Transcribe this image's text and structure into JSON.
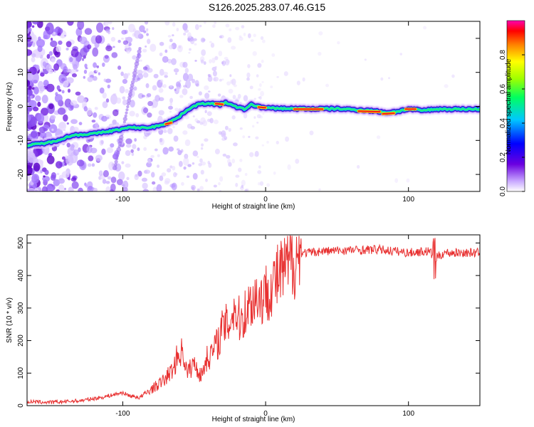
{
  "title": "S126.2025.283.07.46.G15",
  "chart_data": [
    {
      "type": "heatmap",
      "xlabel": "Height of straight line (km)",
      "ylabel": "Frequency (Hz)",
      "xlim": [
        -167,
        150
      ],
      "ylim": [
        -25,
        25
      ],
      "x_ticks": [
        -100,
        0,
        100
      ],
      "y_ticks": [
        -20,
        -10,
        0,
        10,
        20
      ],
      "colorbar": {
        "label": "Normalized spectral amplitude",
        "range": [
          0,
          1
        ],
        "ticks": [
          "0.0",
          "0.2",
          "0.4",
          "0.6",
          "0.8"
        ],
        "tick_values": [
          0,
          0.2,
          0.4,
          0.6,
          0.8
        ]
      },
      "ridge": [
        [
          -167,
          -11.5
        ],
        [
          -150,
          -10.5
        ],
        [
          -135,
          -8.5
        ],
        [
          -120,
          -8
        ],
        [
          -105,
          -7
        ],
        [
          -95,
          -6.2
        ],
        [
          -85,
          -6.3
        ],
        [
          -78,
          -6
        ],
        [
          -70,
          -5
        ],
        [
          -62,
          -3.5
        ],
        [
          -55,
          -1
        ],
        [
          -48,
          0.5
        ],
        [
          -40,
          1
        ],
        [
          -32,
          0.5
        ],
        [
          -28,
          1.2
        ],
        [
          -22,
          0
        ],
        [
          -15,
          -0.8
        ],
        [
          -10,
          0.5
        ],
        [
          -5,
          0
        ],
        [
          0,
          -0.5
        ],
        [
          10,
          -0.6
        ],
        [
          30,
          -0.7
        ],
        [
          50,
          -0.7
        ],
        [
          65,
          -1
        ],
        [
          75,
          -1.3
        ],
        [
          85,
          -1.8
        ],
        [
          92,
          -1.5
        ],
        [
          100,
          -0.8
        ],
        [
          110,
          -1.2
        ],
        [
          120,
          -0.8
        ],
        [
          135,
          -0.8
        ],
        [
          150,
          -0.8
        ]
      ],
      "hot_segments": [
        [
          [
            -5,
            -0.2
          ],
          [
            0,
            -0.4
          ]
        ],
        [
          [
            20,
            -0.8
          ],
          [
            40,
            -0.8
          ]
        ],
        [
          [
            65,
            -1.4
          ],
          [
            80,
            -1.6
          ]
        ],
        [
          [
            82,
            -2.2
          ],
          [
            90,
            -2.0
          ]
        ],
        [
          [
            98,
            -0.8
          ],
          [
            105,
            -0.8
          ]
        ],
        [
          [
            -70,
            -5.2
          ],
          [
            -66,
            -4.8
          ]
        ],
        [
          [
            -35,
            0.8
          ],
          [
            -30,
            0.6
          ]
        ]
      ]
    },
    {
      "type": "line",
      "xlabel": "Height of straight line (km)",
      "ylabel": "SNR (10 * v/v)",
      "xlim": [
        -167,
        150
      ],
      "ylim": [
        0,
        525
      ],
      "x_ticks": [
        -100,
        0,
        100
      ],
      "y_ticks": [
        0,
        100,
        200,
        300,
        400,
        500
      ],
      "color": "#e83030",
      "series": [
        {
          "name": "SNR",
          "x": [
            -167,
            -150,
            -130,
            -115,
            -105,
            -100,
            -95,
            -88,
            -80,
            -72,
            -65,
            -62,
            -58,
            -55,
            -50,
            -45,
            -42,
            -38,
            -34,
            -30,
            -26,
            -22,
            -18,
            -14,
            -10,
            -6,
            -2,
            2,
            6,
            10,
            14,
            18,
            22,
            25,
            30,
            40,
            60,
            80,
            100,
            115,
            118,
            125,
            150
          ],
          "values": [
            12,
            10,
            15,
            25,
            35,
            40,
            30,
            25,
            50,
            75,
            110,
            150,
            170,
            100,
            130,
            90,
            140,
            160,
            190,
            240,
            250,
            300,
            260,
            290,
            320,
            340,
            330,
            360,
            380,
            400,
            420,
            440,
            460,
            470,
            470,
            475,
            478,
            480,
            470,
            475,
            450,
            470,
            470
          ]
        }
      ]
    }
  ]
}
